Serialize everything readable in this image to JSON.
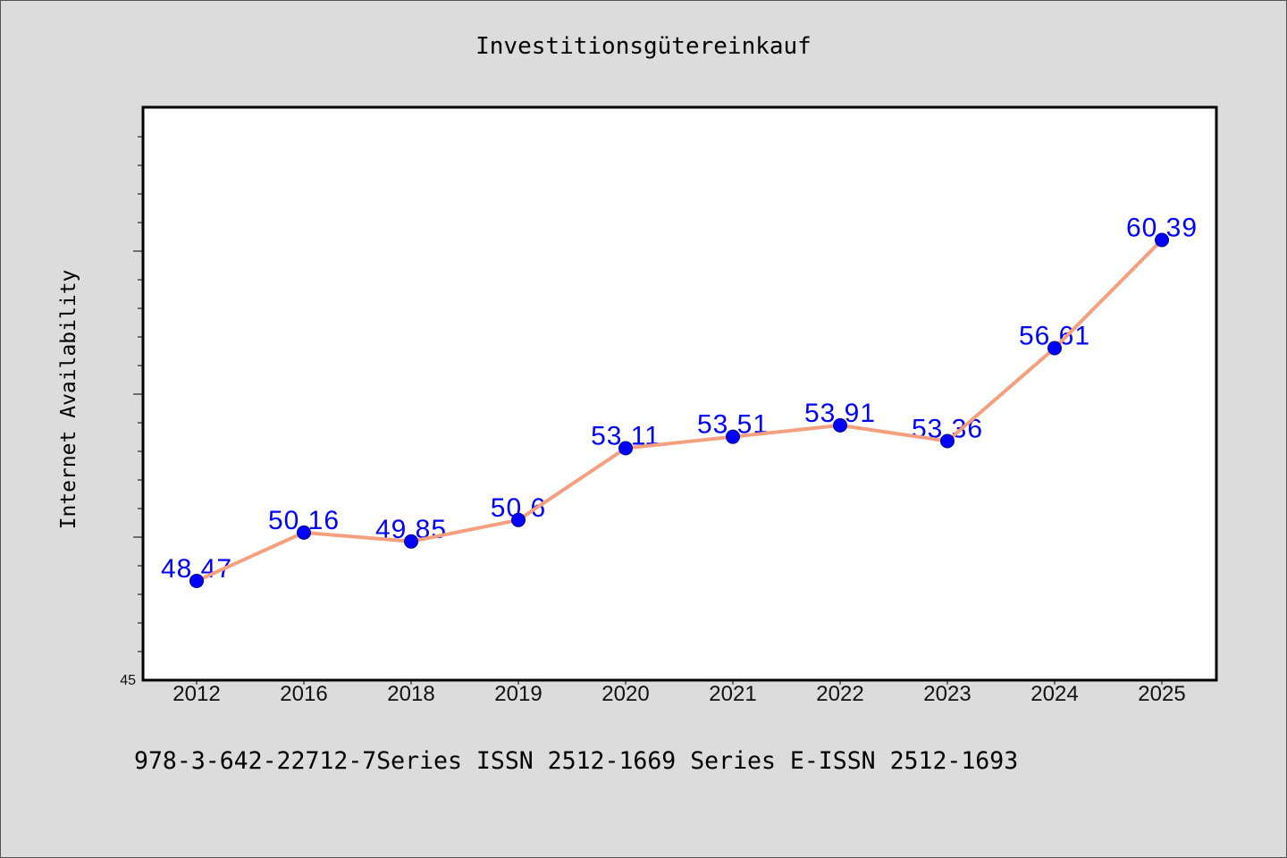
{
  "chart_data": {
    "type": "line",
    "title": "Investitionsgütereinkauf",
    "ylabel": "Internet Availability",
    "categories": [
      "2012",
      "2016",
      "2018",
      "2019",
      "2020",
      "2021",
      "2022",
      "2023",
      "2024",
      "2025"
    ],
    "series": [
      {
        "values": [
          48.47,
          50.16,
          49.85,
          50.6,
          53.11,
          53.51,
          53.91,
          53.36,
          56.61,
          60.39
        ],
        "line_color": "#f4a07f",
        "marker_color": "#0000ff",
        "label_color": "#0000ff"
      }
    ],
    "ylim": [
      45,
      65
    ],
    "y_minor_step": 1,
    "y_major_step": 5,
    "y_tick_values": [
      45
    ],
    "y_tick_labels": [
      "45"
    ],
    "grid": false,
    "legend": "none",
    "background_color": "#dcdcdc",
    "plot_background": "#ffffff"
  },
  "footer": {
    "text": "978-3-642-22712-7Series ISSN 2512-1669 Series E-ISSN 2512-1693"
  }
}
